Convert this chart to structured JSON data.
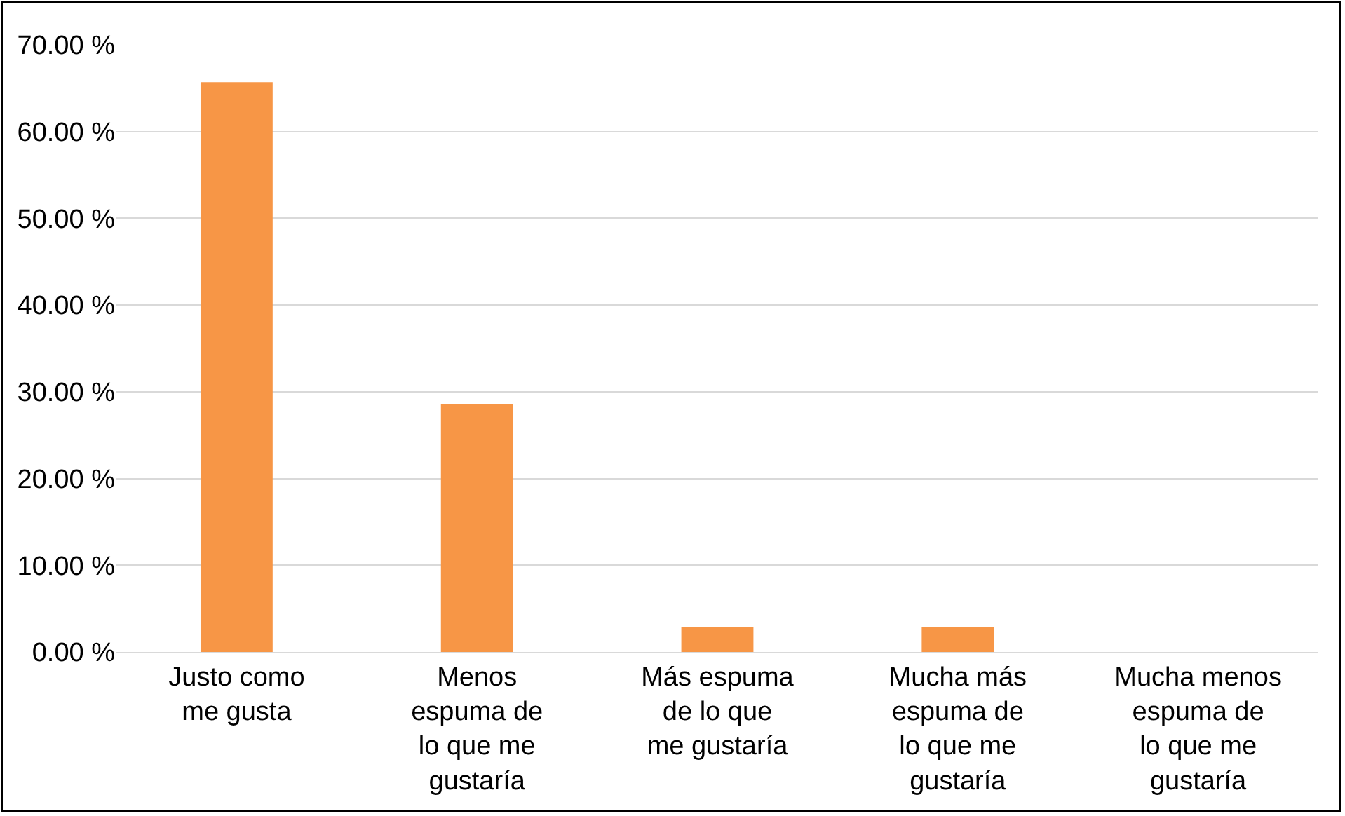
{
  "chart_data": {
    "type": "bar",
    "categories": [
      "Justo como me gusta",
      "Menos espuma de lo que me gustaría",
      "Más espuma de lo que me gustaría",
      "Mucha más espuma de lo que me gustaría",
      "Mucha menos espuma de lo que me gustaría"
    ],
    "values": [
      65.7,
      28.6,
      2.9,
      2.9,
      0
    ],
    "color": "#f79646",
    "ylim": [
      0,
      70
    ],
    "yticks": [
      {
        "value": 0,
        "label": "0.00 %"
      },
      {
        "value": 10,
        "label": "10.00 %"
      },
      {
        "value": 20,
        "label": "20.00 %"
      },
      {
        "value": 30,
        "label": "30.00 %"
      },
      {
        "value": 40,
        "label": "40.00 %"
      },
      {
        "value": 50,
        "label": "50.00 %"
      },
      {
        "value": 60,
        "label": "60.00 %"
      },
      {
        "value": 70,
        "label": "70.00 %"
      }
    ],
    "grid": "y"
  }
}
